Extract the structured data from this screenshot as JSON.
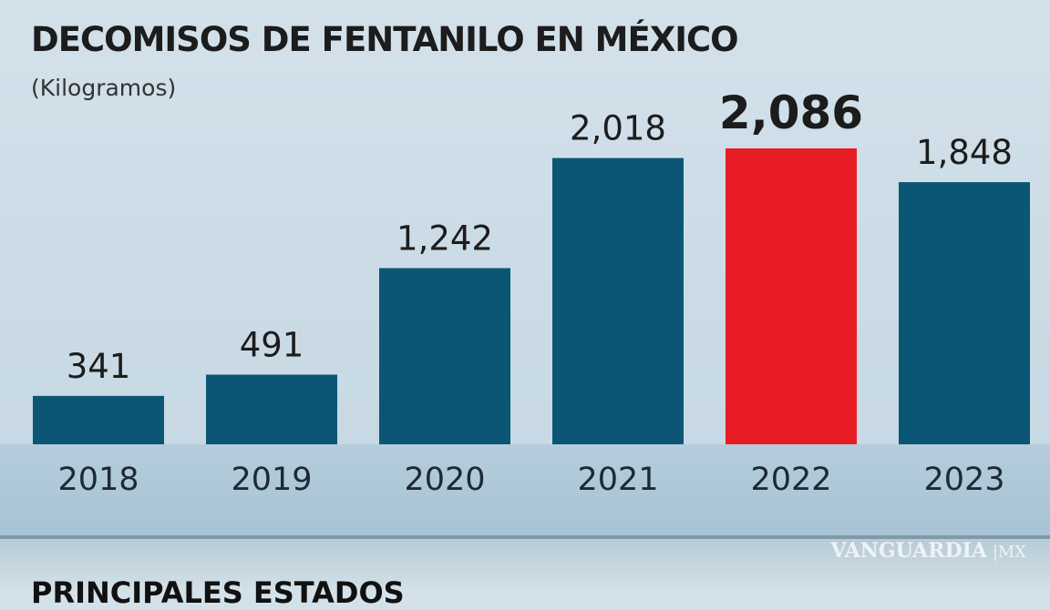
{
  "chart_data": {
    "type": "bar",
    "title": "DECOMISOS DE FENTANILO EN MÉXICO",
    "subtitle": "(Kilogramos)",
    "categories": [
      "2018",
      "2019",
      "2020",
      "2021",
      "2022",
      "2023"
    ],
    "values": [
      341,
      491,
      1242,
      2018,
      2086,
      1848
    ],
    "value_labels": [
      "341",
      "491",
      "1,242",
      "2,018",
      "2,086",
      "1,848"
    ],
    "highlight_index": 4,
    "colors": {
      "bar": "#0b5674",
      "highlight": "#e81c24",
      "text": "#1c1c1c"
    },
    "grid": false,
    "ylim": [
      0,
      2086
    ]
  },
  "next_section_title": "PRINCIPALES ESTADOS",
  "watermark": "VANGUARDIA MX"
}
